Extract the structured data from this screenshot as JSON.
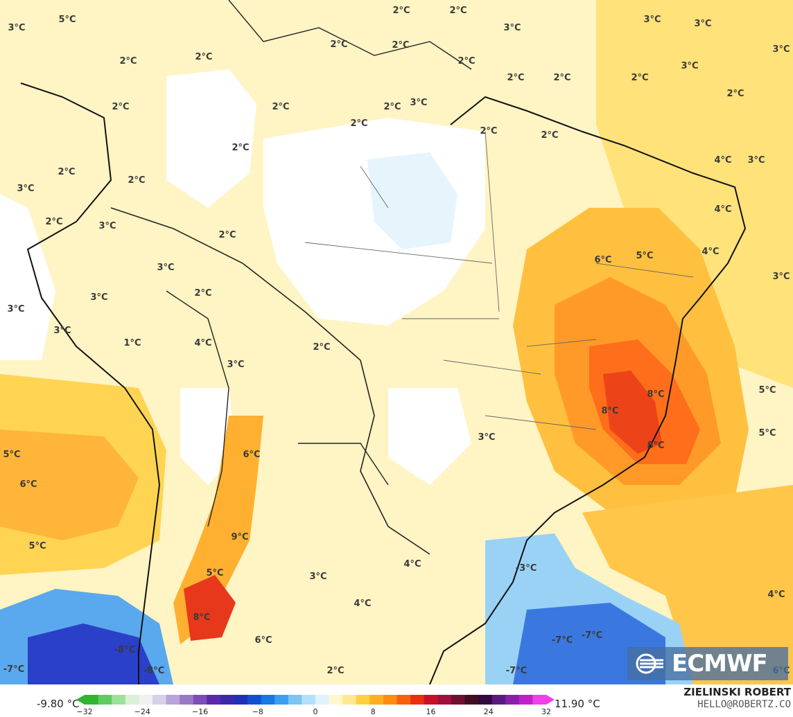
{
  "map": {
    "title": "",
    "labels": [
      {
        "text": "3°C"
      },
      {
        "text": "5°C"
      },
      {
        "text": "2°C"
      },
      {
        "text": "2°C"
      },
      {
        "text": "2°C"
      },
      {
        "text": "2°C"
      },
      {
        "text": "2°C"
      },
      {
        "text": "2°C"
      },
      {
        "text": "2°C"
      },
      {
        "text": "3°C"
      },
      {
        "text": "3°C"
      },
      {
        "text": "3°C"
      },
      {
        "text": "3°C"
      },
      {
        "text": "3°C"
      },
      {
        "text": "2°C"
      },
      {
        "text": "2°C"
      },
      {
        "text": "2°C"
      },
      {
        "text": "2°C"
      },
      {
        "text": "2°C"
      },
      {
        "text": "3°C"
      },
      {
        "text": "2°C"
      },
      {
        "text": "2°C"
      },
      {
        "text": "2°C"
      },
      {
        "text": "2°C"
      },
      {
        "text": "2°C"
      },
      {
        "text": "2°C"
      },
      {
        "text": "2°C"
      },
      {
        "text": "4°C"
      },
      {
        "text": "3°C"
      },
      {
        "text": "2°C"
      },
      {
        "text": "3°C"
      },
      {
        "text": "2°C"
      },
      {
        "text": "3°C"
      },
      {
        "text": "2°C"
      },
      {
        "text": "4°C"
      },
      {
        "text": "6°C"
      },
      {
        "text": "5°C"
      },
      {
        "text": "4°C"
      },
      {
        "text": "3°C"
      },
      {
        "text": "2°C"
      },
      {
        "text": "3°C"
      },
      {
        "text": "3°C"
      },
      {
        "text": "1°C"
      },
      {
        "text": "4°C"
      },
      {
        "text": "3°C"
      },
      {
        "text": "2°C"
      },
      {
        "text": "3°C"
      },
      {
        "text": "6°C"
      },
      {
        "text": "5°C"
      },
      {
        "text": "8°C"
      },
      {
        "text": "8°C"
      },
      {
        "text": "5°C"
      },
      {
        "text": "5°C"
      },
      {
        "text": "8°C"
      },
      {
        "text": "3°C"
      },
      {
        "text": "6°C"
      },
      {
        "text": "3°C"
      },
      {
        "text": "5°C"
      },
      {
        "text": "9°C"
      },
      {
        "text": "5°C"
      },
      {
        "text": "4°C"
      },
      {
        "text": "-3°C"
      },
      {
        "text": "3°C"
      },
      {
        "text": "8°C"
      },
      {
        "text": "4°C"
      },
      {
        "text": "4°C"
      },
      {
        "text": "6°C"
      },
      {
        "text": "-8°C"
      },
      {
        "text": "-7°C"
      },
      {
        "text": "-8°C"
      },
      {
        "text": "2°C"
      },
      {
        "text": "-7°C"
      },
      {
        "text": "-7°C"
      },
      {
        "text": "-7°C"
      },
      {
        "text": "6°C"
      }
    ]
  },
  "logo": {
    "text": "ECMWF",
    "icon": "ecmwf-logo-icon"
  },
  "colorbar": {
    "min_label": "-9.80 °C",
    "max_label": "11.90 °C",
    "ticks": [
      "−32",
      "−24",
      "−16",
      "−8",
      "0",
      "8",
      "16",
      "24",
      "32"
    ],
    "range": [
      -32,
      32
    ],
    "colors": [
      "#2fb52f",
      "#5fcb5f",
      "#9be09b",
      "#d8f0d8",
      "#f0f0f0",
      "#d8d0e8",
      "#b8a4d8",
      "#9a78c8",
      "#7c4cb8",
      "#5a2aa8",
      "#3a2aa8",
      "#2030b8",
      "#1050d0",
      "#1a78e0",
      "#3aa0ee",
      "#7cc4f4",
      "#b4e0fa",
      "#e0f2fc",
      "#fff7d0",
      "#ffe890",
      "#ffd040",
      "#ffb020",
      "#ff8c10",
      "#f86010",
      "#e83010",
      "#c81028",
      "#a0103c",
      "#701030",
      "#401020",
      "#300a40",
      "#5a1a80",
      "#8a20a8",
      "#c020c8",
      "#f040e8"
    ]
  },
  "credits": {
    "author": "ZIELINSKI ROBERT",
    "email": "HELLO@ROBERTZ.CO"
  },
  "colors": {
    "land_pale": "#fff7d0",
    "warm_yellow": "#ffe680",
    "orange": "#ffb030",
    "deep_orange": "#ff7a1a",
    "red": "#e8321a",
    "cold_light": "#cbe9fb",
    "cold_mid": "#5aaef0",
    "cold_deep": "#2438c8"
  }
}
